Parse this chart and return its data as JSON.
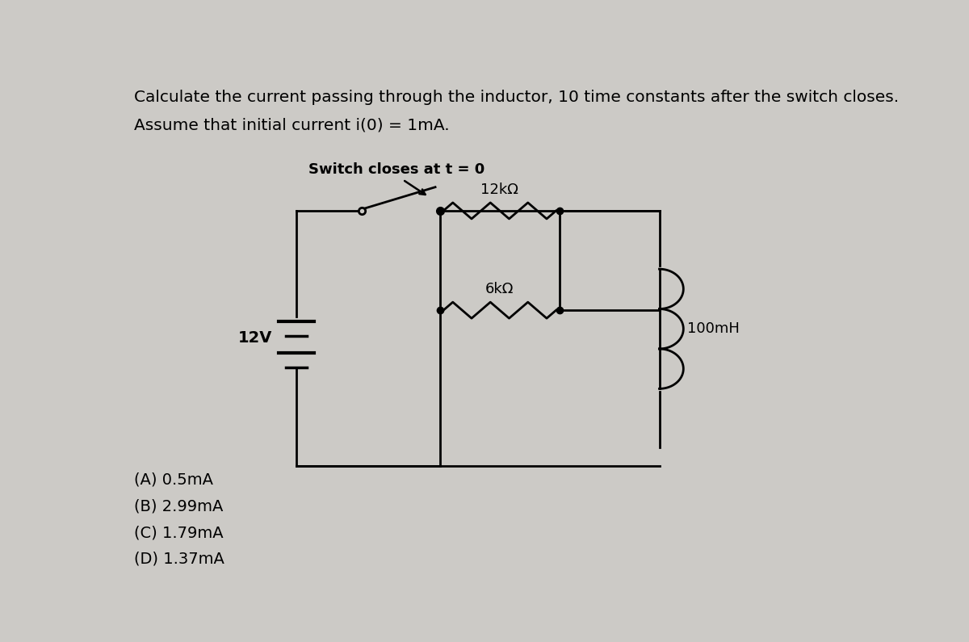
{
  "title_line1": "Calculate the current passing through the inductor, 10 time constants after the switch closes.",
  "title_line2": "Assume that initial current i(0) = 1mA.",
  "switch_label": "Switch closes at t = 0",
  "r1_label": "12kΩ",
  "r2_label": "6kΩ",
  "l_label": "100mH",
  "v_label": "12V",
  "options": [
    "(A) 0.5mA",
    "(B) 2.99mA",
    "(C) 1.79mA",
    "(D) 1.37mA"
  ],
  "bg_color": "#cccac6",
  "text_color": "#000000",
  "circuit_color": "#000000",
  "title_fontsize": 14.5,
  "label_fontsize": 13,
  "option_fontsize": 14
}
